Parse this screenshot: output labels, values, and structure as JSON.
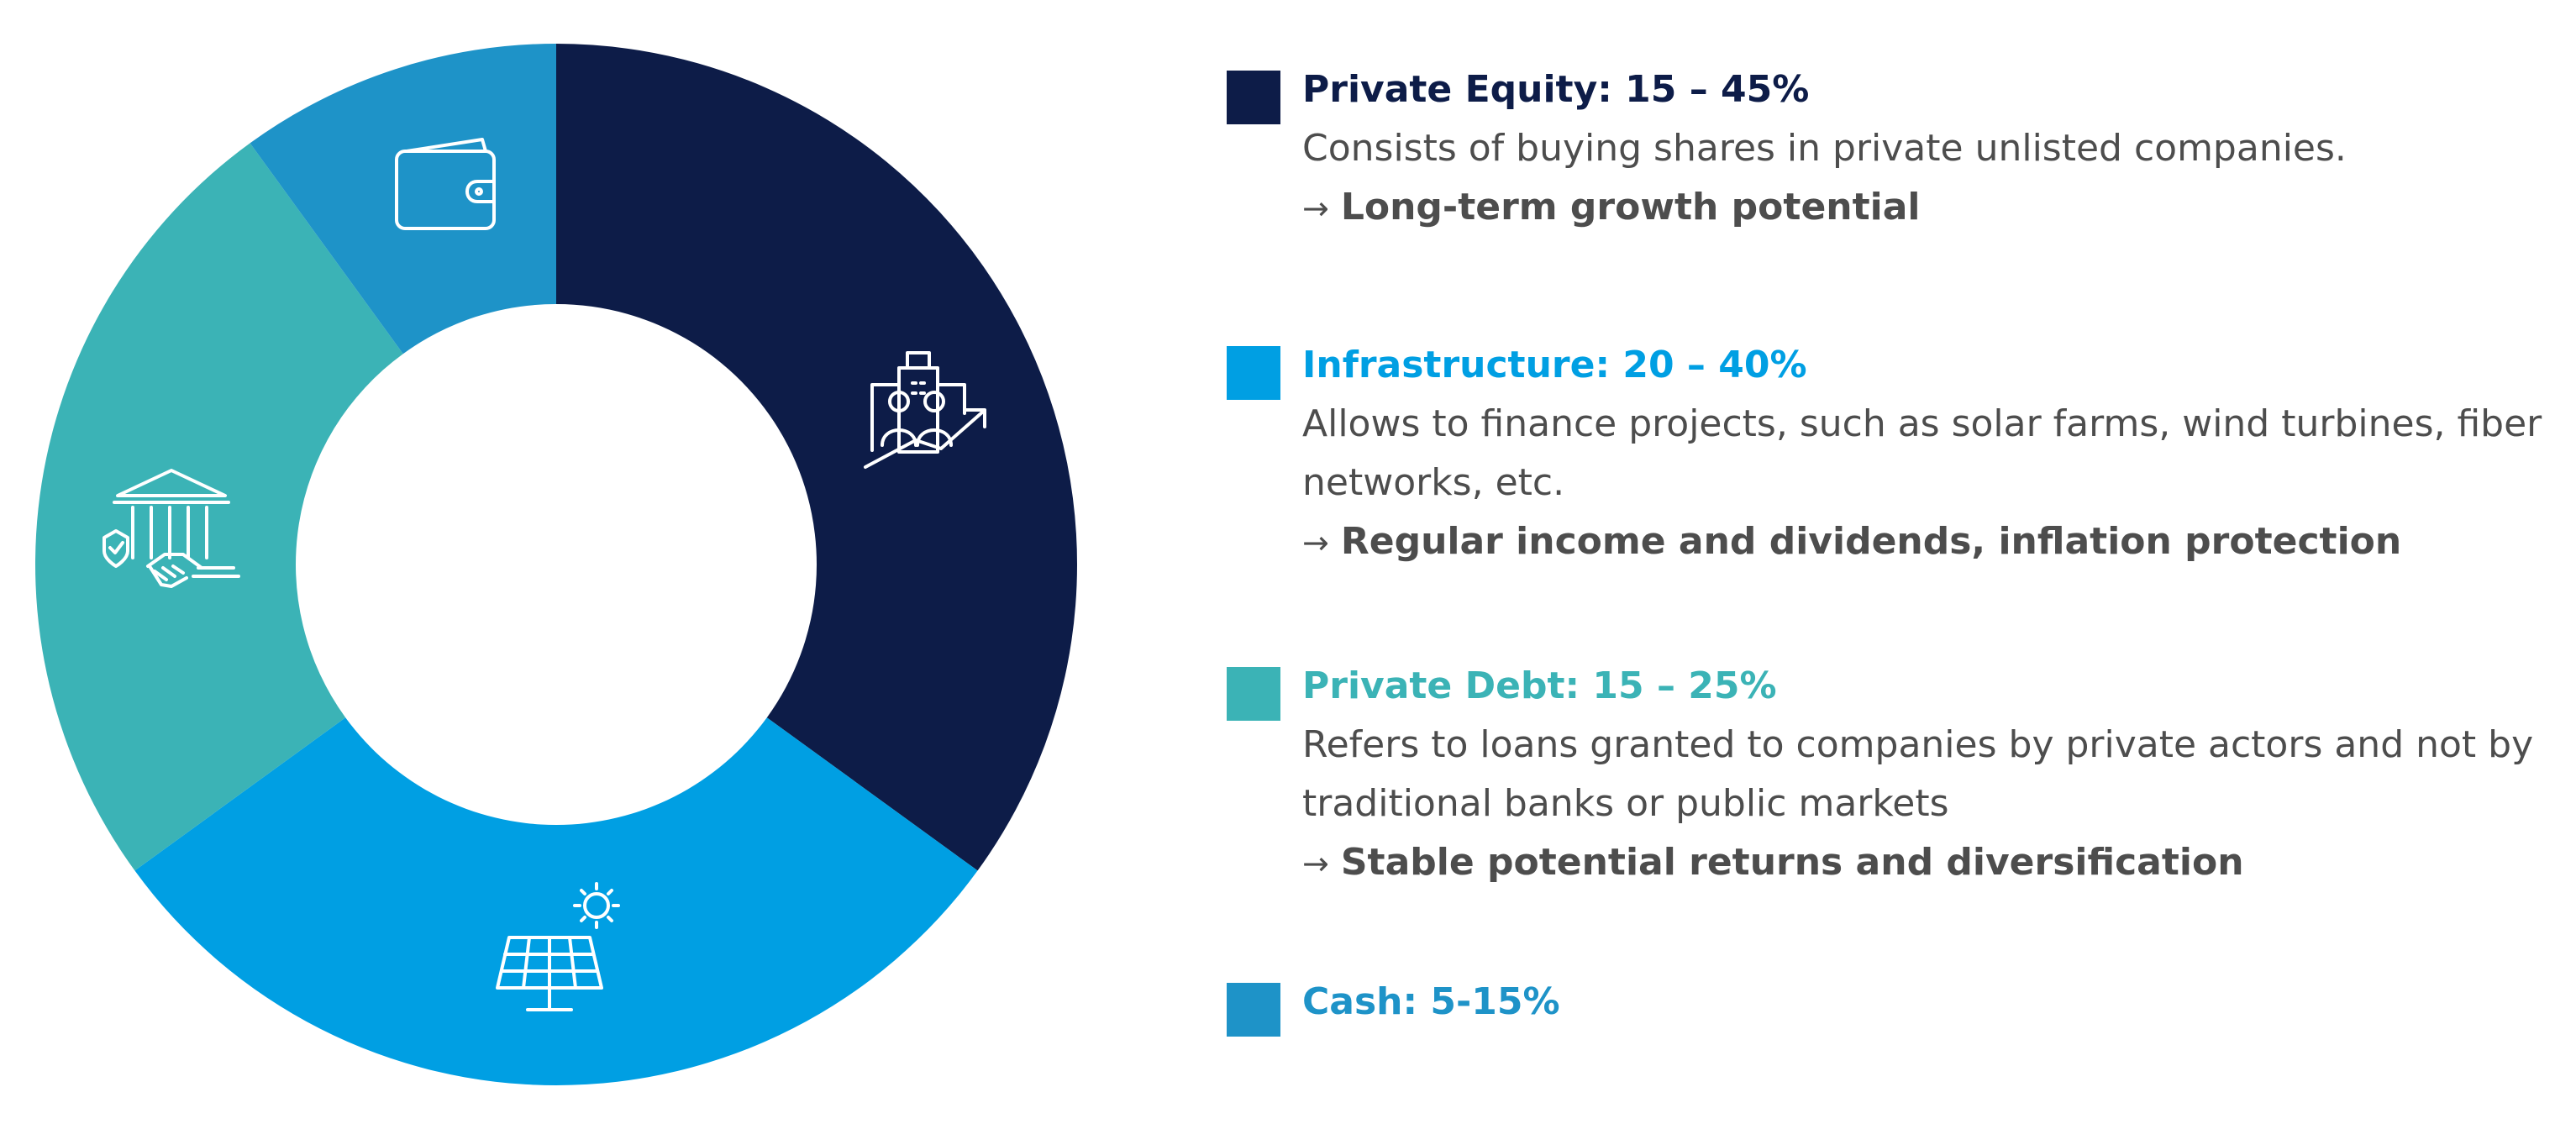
{
  "chart_data": {
    "type": "pie",
    "donut": true,
    "slices": [
      {
        "label": "Private Equity: 15 – 45%",
        "value": 35,
        "color": "#0d1c48",
        "icon": "building-growth-icon"
      },
      {
        "label": "Infrastructure: 20 – 40%",
        "value": 30,
        "color": "#009fe3",
        "icon": "solar-panel-icon"
      },
      {
        "label": "Private Debt: 15 – 25%",
        "value": 25,
        "color": "#3bb3b6",
        "icon": "bank-handshake-icon"
      },
      {
        "label": "Cash: 5-15%",
        "value": 10,
        "color": "#1e93c8",
        "icon": "wallet-icon"
      }
    ]
  },
  "legend": [
    {
      "title": "Private Equity: 15 – 45%",
      "title_color": "#0d1c48",
      "swatch_color": "#0d1c48",
      "description": "Consists of buying shares in private unlisted companies.",
      "arrow": "→",
      "benefit": "Long-term growth potential"
    },
    {
      "title": "Infrastructure: 20 – 40%",
      "title_color": "#009fe3",
      "swatch_color": "#009fe3",
      "description": "Allows to finance projects, such as solar farms, wind turbines, fiber networks, etc.",
      "arrow": "→",
      "benefit": "Regular income and dividends, inflation protection"
    },
    {
      "title": "Private Debt: 15 – 25%",
      "title_color": "#3bb3b6",
      "swatch_color": "#3bb3b6",
      "description": "Refers to loans granted to companies by private actors and not by traditional banks or public markets",
      "arrow": "→",
      "benefit": "Stable potential returns and diversification"
    },
    {
      "title": "Cash: 5-15%",
      "title_color": "#1e93c8",
      "swatch_color": "#1e93c8",
      "description": "",
      "arrow": "",
      "benefit": ""
    }
  ]
}
